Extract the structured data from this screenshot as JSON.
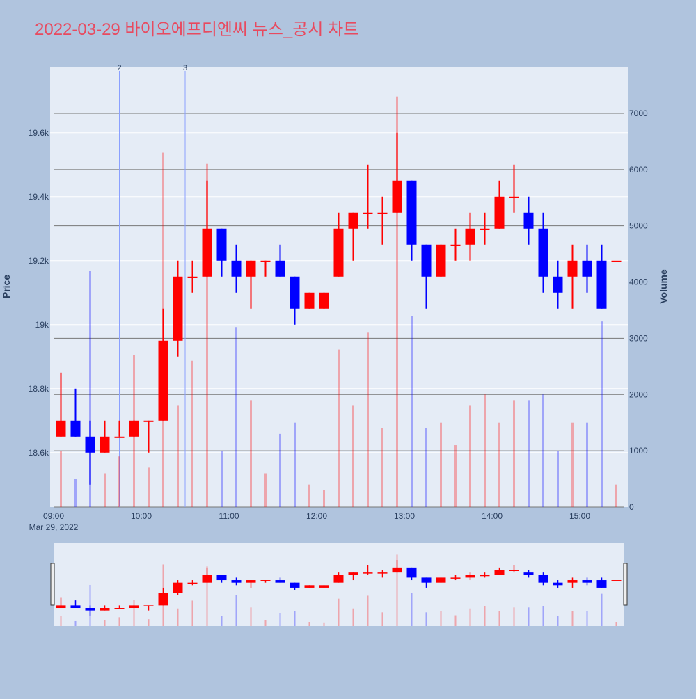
{
  "chart_data": {
    "type": "candlestick",
    "title": "2022-03-29 바이오에프디엔씨 뉴스_공시 차트",
    "y_label": "Price",
    "y2_label": "Volume",
    "x": [
      "09:00",
      "09:10",
      "09:20",
      "09:30",
      "09:40",
      "09:50",
      "10:00",
      "10:10",
      "10:20",
      "10:30",
      "10:40",
      "10:50",
      "11:00",
      "11:10",
      "11:20",
      "11:30",
      "11:40",
      "11:50",
      "12:00",
      "12:10",
      "12:20",
      "12:30",
      "12:40",
      "12:50",
      "13:00",
      "13:10",
      "13:20",
      "13:30",
      "13:40",
      "13:50",
      "14:00",
      "14:10",
      "14:20",
      "14:30",
      "14:40",
      "14:50",
      "15:00",
      "15:10",
      "15:20"
    ],
    "open": [
      18650,
      18700,
      18650,
      18600,
      18650,
      18650,
      18700,
      18700,
      18950,
      19150,
      19150,
      19300,
      19200,
      19150,
      19200,
      19200,
      19150,
      19050,
      19050,
      19150,
      19300,
      19350,
      19350,
      19350,
      19450,
      19250,
      19150,
      19250,
      19250,
      19300,
      19300,
      19400,
      19350,
      19300,
      19150,
      19150,
      19200,
      19200,
      19200
    ],
    "high": [
      18850,
      18800,
      18700,
      18700,
      18700,
      18700,
      18700,
      19050,
      19200,
      19200,
      19450,
      19300,
      19250,
      19200,
      19200,
      19250,
      19150,
      19100,
      19100,
      19350,
      19350,
      19500,
      19400,
      19600,
      19450,
      19250,
      19250,
      19300,
      19350,
      19350,
      19450,
      19500,
      19400,
      19350,
      19200,
      19250,
      19250,
      19250,
      19200
    ],
    "low": [
      18650,
      18650,
      18500,
      18600,
      18650,
      18650,
      18600,
      18700,
      18900,
      19100,
      19150,
      19150,
      19100,
      19050,
      19150,
      19150,
      19000,
      19050,
      19050,
      19150,
      19200,
      19300,
      19250,
      19350,
      19200,
      19050,
      19150,
      19200,
      19200,
      19250,
      19300,
      19350,
      19250,
      19100,
      19050,
      19050,
      19100,
      19050,
      19200
    ],
    "close": [
      18700,
      18650,
      18600,
      18650,
      18650,
      18700,
      18700,
      18950,
      19150,
      19150,
      19300,
      19200,
      19150,
      19200,
      19200,
      19150,
      19050,
      19100,
      19100,
      19300,
      19350,
      19350,
      19350,
      19450,
      19250,
      19150,
      19250,
      19250,
      19300,
      19300,
      19400,
      19400,
      19300,
      19150,
      19100,
      19200,
      19150,
      19050,
      19200
    ],
    "volume": [
      1000,
      500,
      4200,
      600,
      900,
      2700,
      700,
      6300,
      1800,
      2600,
      6100,
      1000,
      3200,
      1900,
      600,
      1300,
      1500,
      400,
      300,
      2800,
      1800,
      3100,
      1400,
      7300,
      3400,
      1400,
      1500,
      1100,
      1800,
      2000,
      1500,
      1900,
      1900,
      2000,
      1000,
      1500,
      1500,
      3300,
      400
    ],
    "increasing_color": "#ff0000",
    "decreasing_color": "#0000ff",
    "xticks": [
      "09:00",
      "10:00",
      "11:00",
      "12:00",
      "13:00",
      "14:00",
      "15:00"
    ],
    "x_date": "Mar 29, 2022",
    "ylim": [
      18430,
      19806
    ],
    "yticks": [
      {
        "value": 18600,
        "label": "18.6k"
      },
      {
        "value": 18800,
        "label": "18.8k"
      },
      {
        "value": 19000,
        "label": "19k"
      },
      {
        "value": 19200,
        "label": "19.2k"
      },
      {
        "value": 19400,
        "label": "19.4k"
      },
      {
        "value": 19600,
        "label": "19.6k"
      }
    ],
    "y2lim": [
      0,
      7828
    ],
    "y2ticks": [
      0,
      1000,
      2000,
      3000,
      4000,
      5000,
      6000,
      7000
    ],
    "annotations": [
      {
        "x": "09:45",
        "text": "2"
      },
      {
        "x": "10:30",
        "text": "3"
      }
    ],
    "range_slider": true
  }
}
